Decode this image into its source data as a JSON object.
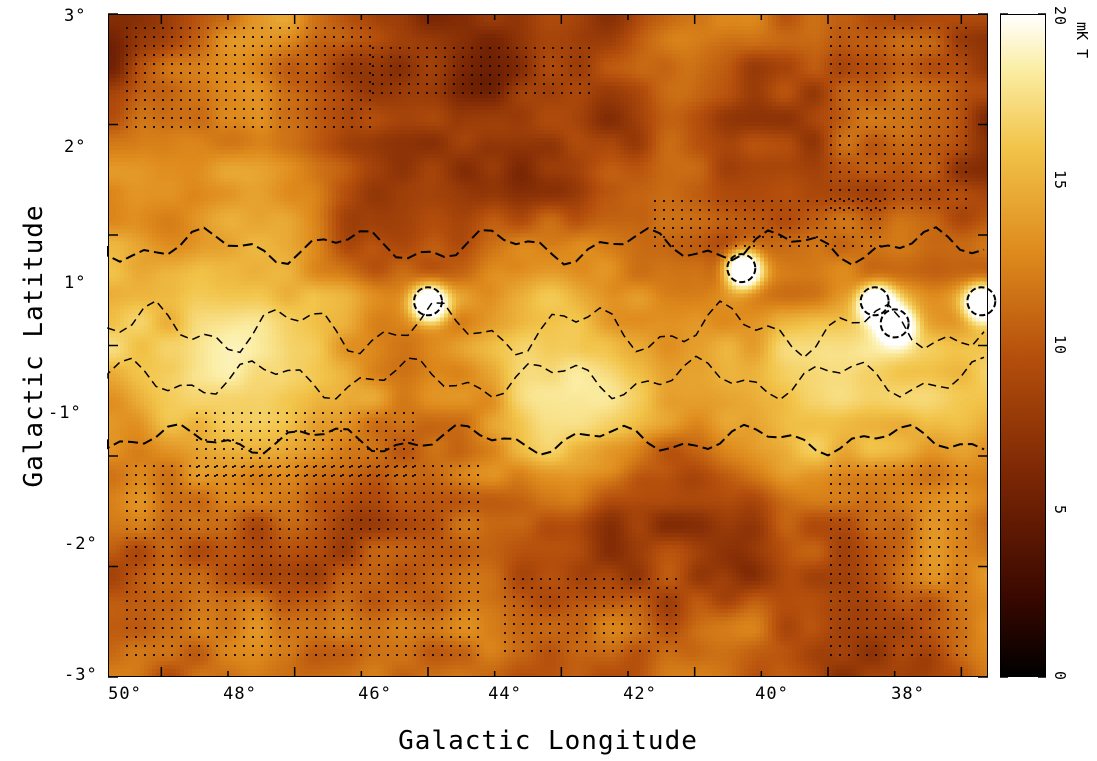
{
  "chart_data": {
    "type": "heatmap",
    "title": "",
    "xlabel": "Galactic Longitude",
    "ylabel": "Galactic Latitude",
    "x_ticks": [
      "50°",
      "48°",
      "46°",
      "44°",
      "42°",
      "40°",
      "38°"
    ],
    "y_ticks": [
      "3°",
      "2°",
      "1°",
      "-1°",
      "-2°",
      "-3°"
    ],
    "xlim": [
      50.8,
      37.6
    ],
    "ylim": [
      -3,
      3
    ],
    "colorbar": {
      "label": "mK T",
      "ticks": [
        "0",
        "5",
        "10",
        "15",
        "20"
      ],
      "range": [
        0,
        20
      ],
      "colormap": [
        "#000000",
        "#3a0800",
        "#7a2604",
        "#b44e0c",
        "#de8a1c",
        "#f2c44a",
        "#fbeea6",
        "#ffffff"
      ]
    },
    "overlays": [
      "dashed contours",
      "dotted masked regions"
    ],
    "grid": false,
    "bright_sources": [
      {
        "l": 46.0,
        "b": 0.4
      },
      {
        "l": 41.3,
        "b": 0.7
      },
      {
        "l": 39.3,
        "b": 0.4
      },
      {
        "l": 39.0,
        "b": 0.2
      },
      {
        "l": 37.7,
        "b": 0.4
      }
    ]
  }
}
